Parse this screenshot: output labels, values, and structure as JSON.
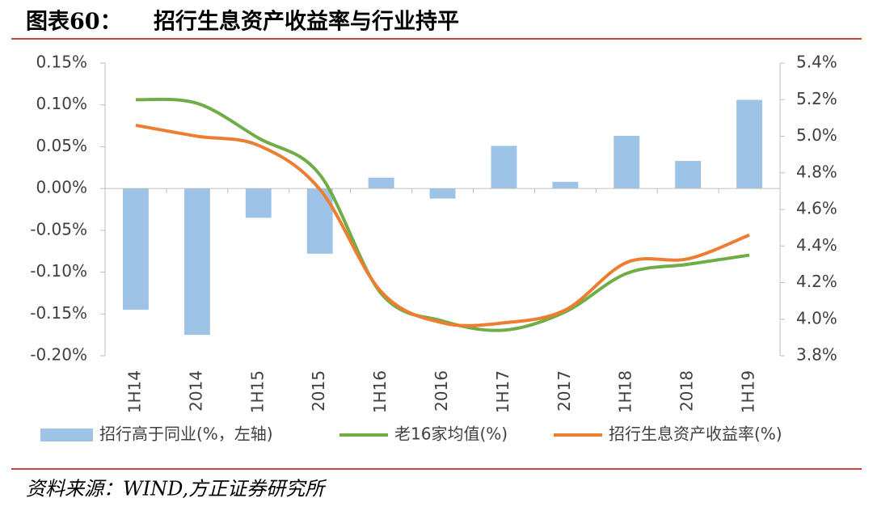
{
  "figure_label": "图表60：",
  "source": "资料来源：WIND,方正证券研究所",
  "chart_data": {
    "type": "bar_line",
    "title": "招行生息资产收益率与行业持平",
    "categories": [
      "1H14",
      "2014",
      "1H15",
      "2015",
      "1H16",
      "2016",
      "1H17",
      "2017",
      "1H18",
      "2018",
      "1H19"
    ],
    "ylim": [
      -0.2,
      0.15
    ],
    "yticks": [
      {
        "value": 0.15,
        "label": "0.15%"
      },
      {
        "value": 0.1,
        "label": "0.10%"
      },
      {
        "value": 0.05,
        "label": "0.05%"
      },
      {
        "value": 0,
        "label": "0.00%"
      },
      {
        "value": -0.05,
        "label": "-0.05%"
      },
      {
        "value": -0.1,
        "label": "-0.10%"
      },
      {
        "value": -0.15,
        "label": "-0.15%"
      },
      {
        "value": -0.2,
        "label": "-0.20%"
      }
    ],
    "y2lim": [
      3.8,
      5.4
    ],
    "y2ticks": [
      {
        "value": 5.4,
        "label": "5.4%"
      },
      {
        "value": 5.2,
        "label": "5.2%"
      },
      {
        "value": 5.0,
        "label": "5.0%"
      },
      {
        "value": 4.8,
        "label": "4.8%"
      },
      {
        "value": 4.6,
        "label": "4.6%"
      },
      {
        "value": 4.4,
        "label": "4.4%"
      },
      {
        "value": 4.2,
        "label": "4.2%"
      },
      {
        "value": 4.0,
        "label": "4.0%"
      },
      {
        "value": 3.8,
        "label": "3.8%"
      }
    ],
    "grid": false,
    "series": [
      {
        "name": "招行高于同业(%，左轴)",
        "type": "bar",
        "color": "#9dc3e6",
        "values": [
          -0.145,
          -0.175,
          -0.035,
          -0.078,
          0.013,
          -0.012,
          0.051,
          0.008,
          0.063,
          0.033,
          0.106
        ]
      },
      {
        "name": "老16家均值(%)",
        "type": "line",
        "axis": "y2",
        "color": "#70ad47",
        "values": [
          5.2,
          5.18,
          4.99,
          4.79,
          4.14,
          3.99,
          3.94,
          4.04,
          4.25,
          4.3,
          4.35
        ]
      },
      {
        "name": "招行生息资产收益率(%)",
        "type": "line",
        "axis": "y2",
        "color": "#ed7d31",
        "values": [
          5.06,
          5.0,
          4.95,
          4.71,
          4.15,
          3.98,
          3.98,
          4.05,
          4.31,
          4.33,
          4.46
        ]
      }
    ]
  }
}
